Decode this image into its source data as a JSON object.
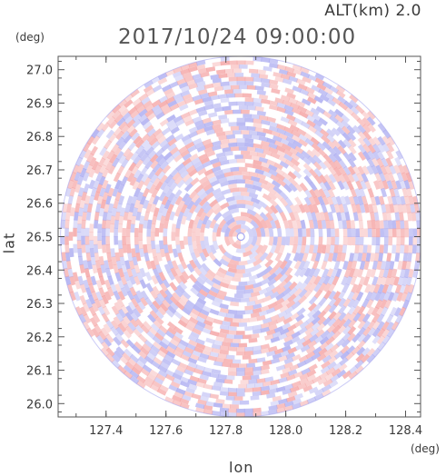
{
  "header": {
    "altitude": "ALT(km) 2.0",
    "datetime": "2017/10/24 09:00:00"
  },
  "chart_data": {
    "type": "heatmap",
    "title": "2017/10/24 09:00:00",
    "xlabel": "lon",
    "ylabel": "lat",
    "x_unit": "(deg)",
    "y_unit": "(deg)",
    "xlim": [
      127.24,
      128.45
    ],
    "ylim": [
      25.96,
      27.04
    ],
    "x_ticks": [
      "127.4",
      "127.6",
      "127.8",
      "128.0",
      "128.2",
      "128.4"
    ],
    "x_tick_values": [
      127.4,
      127.6,
      127.8,
      128.0,
      128.2,
      128.4
    ],
    "y_ticks": [
      "26.0",
      "26.1",
      "26.2",
      "26.3",
      "26.4",
      "26.5",
      "26.6",
      "26.7",
      "26.8",
      "26.9",
      "27.0"
    ],
    "y_tick_values": [
      26.0,
      26.1,
      26.2,
      26.3,
      26.4,
      26.5,
      26.6,
      26.7,
      26.8,
      26.9,
      27.0
    ],
    "center": {
      "lon": 127.85,
      "lat": 26.5
    },
    "radius_deg_lat": 0.54,
    "colors": {
      "positive": "#f4a0a0",
      "negative": "#a8a8f0",
      "neutral": "#ffffff",
      "axis": "#555555"
    },
    "grid": false
  }
}
